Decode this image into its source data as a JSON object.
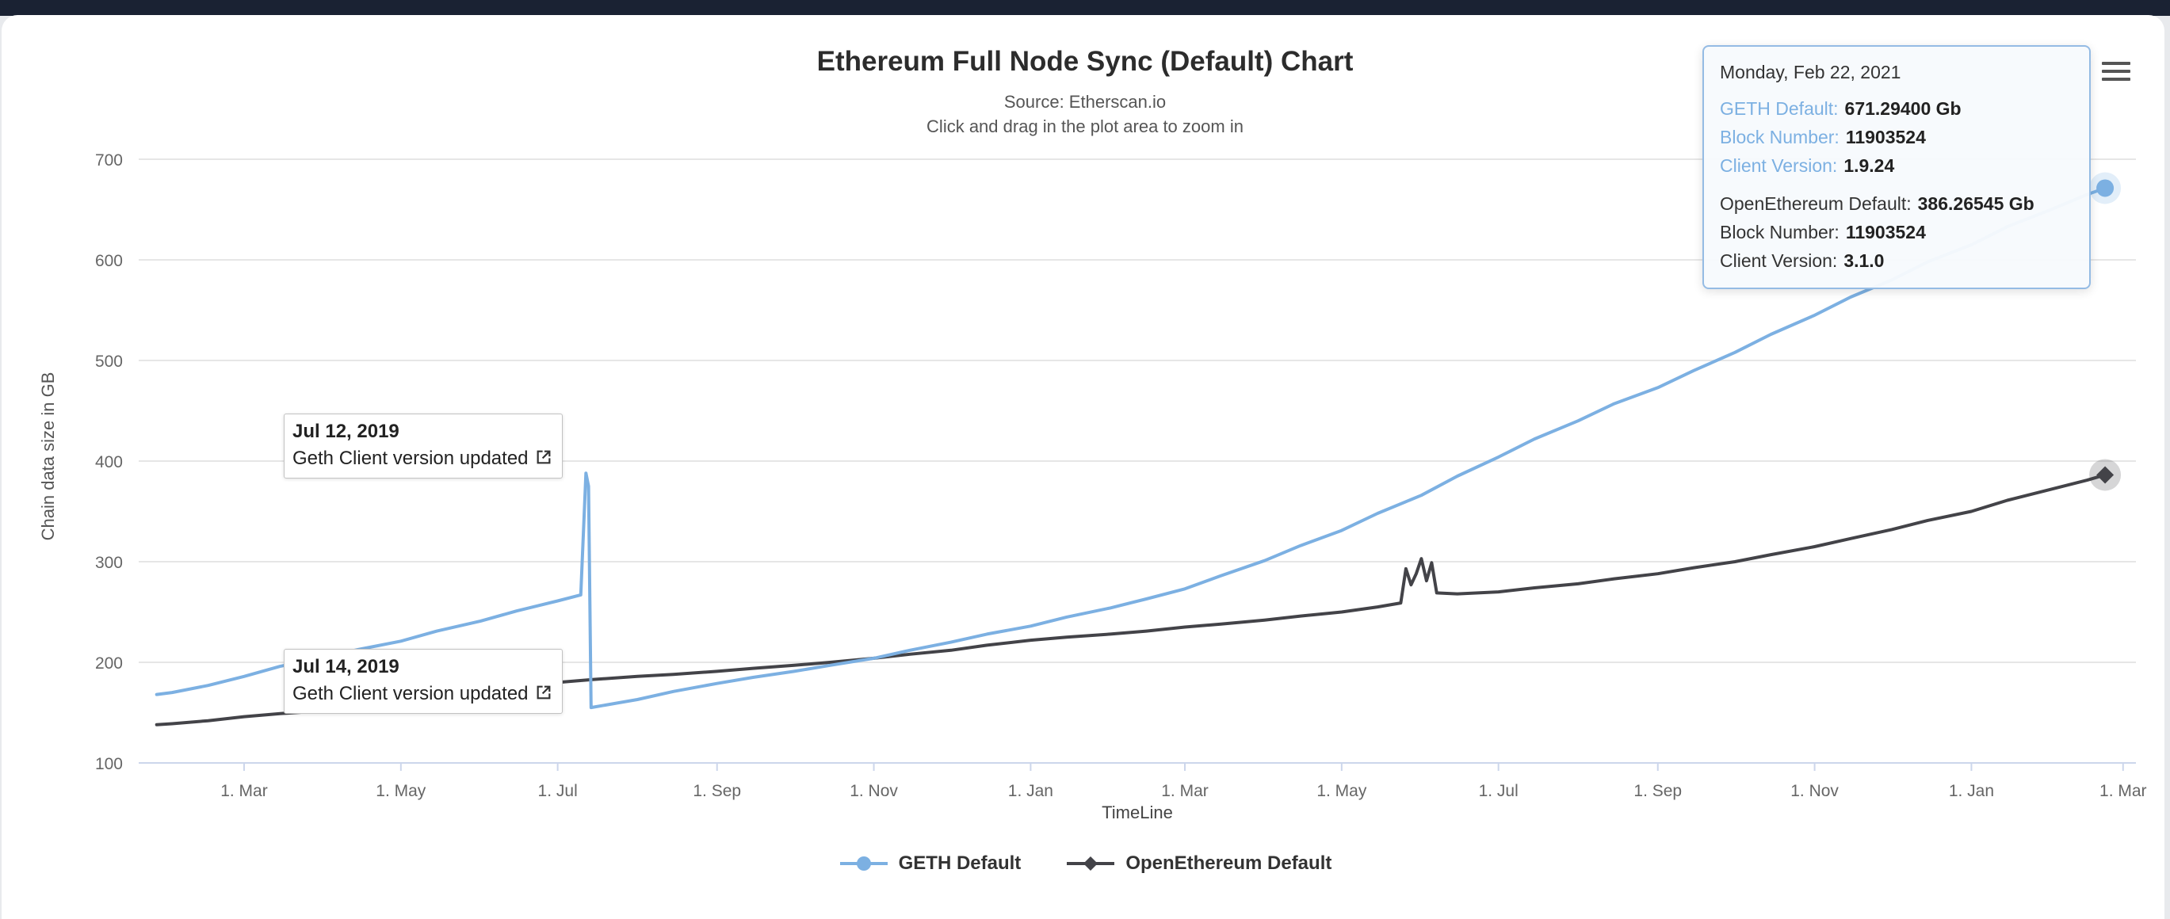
{
  "page": {
    "title": "Ethereum Full Node Sync (Default) Chart",
    "source": "Source: Etherscan.io",
    "hint": "Click and drag in the plot area to zoom in"
  },
  "colors": {
    "geth": "#7cb0e2",
    "openethereum": "#434348",
    "grid": "#e6e6e6",
    "axis": "#ccd6eb",
    "tick_text": "#666666",
    "topbar": "#1a2233",
    "tooltip_border": "#94bbe4",
    "tooltip_bg": "rgba(247,250,253,0.96)"
  },
  "tooltip": {
    "header": "Monday, Feb 22, 2021",
    "groups": [
      {
        "rows": [
          {
            "label": "GETH Default:",
            "value": "671.29400 Gb"
          },
          {
            "label": "Block Number:",
            "value": "11903524"
          },
          {
            "label": "Client Version:",
            "value": "1.9.24"
          }
        ]
      },
      {
        "rows": [
          {
            "label": "OpenEthereum Default:",
            "value": "386.26545 Gb"
          },
          {
            "label": "Block Number:",
            "value": "11903524"
          },
          {
            "label": "Client Version:",
            "value": "3.1.0"
          }
        ]
      }
    ]
  },
  "annotations": [
    {
      "date": "Jul 12, 2019",
      "text": "Geth Client version updated"
    },
    {
      "date": "Jul 14, 2019",
      "text": "Geth Client version updated"
    }
  ],
  "legend": [
    {
      "name": "GETH Default",
      "marker": "circle",
      "color": "#7cb0e2"
    },
    {
      "name": "OpenEthereum Default",
      "marker": "diamond",
      "color": "#434348"
    }
  ],
  "chart_data": {
    "type": "line",
    "title": "Ethereum Full Node Sync (Default) Chart",
    "subtitle": "Source: Etherscan.io",
    "xlabel": "TimeLine",
    "ylabel": "Chain data size in GB",
    "ylim": [
      100,
      700
    ],
    "yticks": [
      100,
      200,
      300,
      400,
      500,
      600,
      700
    ],
    "xlim": [
      "2019-01-19",
      "2021-03-06"
    ],
    "grid": "horizontal",
    "legend_position": "bottom",
    "xticks": [
      {
        "date": "2019-03-01",
        "label": "1. Mar"
      },
      {
        "date": "2019-05-01",
        "label": "1. May"
      },
      {
        "date": "2019-07-01",
        "label": "1. Jul"
      },
      {
        "date": "2019-09-01",
        "label": "1. Sep"
      },
      {
        "date": "2019-11-01",
        "label": "1. Nov"
      },
      {
        "date": "2020-01-01",
        "label": "1. Jan"
      },
      {
        "date": "2020-03-01",
        "label": "1. Mar"
      },
      {
        "date": "2020-05-01",
        "label": "1. May"
      },
      {
        "date": "2020-07-01",
        "label": "1. Jul"
      },
      {
        "date": "2020-09-01",
        "label": "1. Sep"
      },
      {
        "date": "2020-11-01",
        "label": "1. Nov"
      },
      {
        "date": "2021-01-01",
        "label": "1. Jan"
      },
      {
        "date": "2021-03-01",
        "label": "1. Mar"
      }
    ],
    "series": [
      {
        "name": "OpenEthereum Default",
        "color": "#434348",
        "marker": "diamond",
        "points": [
          [
            "2019-01-26",
            138
          ],
          [
            "2019-02-01",
            139
          ],
          [
            "2019-02-15",
            142
          ],
          [
            "2019-03-01",
            146
          ],
          [
            "2019-03-15",
            149
          ],
          [
            "2019-04-01",
            152
          ],
          [
            "2019-04-15",
            155
          ],
          [
            "2019-05-01",
            158
          ],
          [
            "2019-05-15",
            163
          ],
          [
            "2019-06-01",
            168
          ],
          [
            "2019-06-15",
            174
          ],
          [
            "2019-07-01",
            180
          ],
          [
            "2019-07-15",
            183
          ],
          [
            "2019-08-01",
            186
          ],
          [
            "2019-08-15",
            188
          ],
          [
            "2019-09-01",
            191
          ],
          [
            "2019-09-15",
            194
          ],
          [
            "2019-10-01",
            197
          ],
          [
            "2019-10-15",
            200
          ],
          [
            "2019-11-01",
            204
          ],
          [
            "2019-11-15",
            208
          ],
          [
            "2019-12-01",
            212
          ],
          [
            "2019-12-15",
            217
          ],
          [
            "2020-01-01",
            222
          ],
          [
            "2020-01-15",
            225
          ],
          [
            "2020-02-01",
            228
          ],
          [
            "2020-02-15",
            231
          ],
          [
            "2020-03-01",
            235
          ],
          [
            "2020-03-15",
            238
          ],
          [
            "2020-04-01",
            242
          ],
          [
            "2020-04-15",
            246
          ],
          [
            "2020-05-01",
            250
          ],
          [
            "2020-05-15",
            255
          ],
          [
            "2020-05-24",
            259
          ],
          [
            "2020-05-26",
            293
          ],
          [
            "2020-05-28",
            277
          ],
          [
            "2020-05-30",
            288
          ],
          [
            "2020-06-01",
            303
          ],
          [
            "2020-06-03",
            281
          ],
          [
            "2020-06-05",
            299
          ],
          [
            "2020-06-07",
            269
          ],
          [
            "2020-06-15",
            268
          ],
          [
            "2020-07-01",
            270
          ],
          [
            "2020-07-15",
            274
          ],
          [
            "2020-08-01",
            278
          ],
          [
            "2020-08-15",
            283
          ],
          [
            "2020-09-01",
            288
          ],
          [
            "2020-09-15",
            294
          ],
          [
            "2020-10-01",
            300
          ],
          [
            "2020-10-15",
            307
          ],
          [
            "2020-11-01",
            315
          ],
          [
            "2020-11-15",
            323
          ],
          [
            "2020-12-01",
            332
          ],
          [
            "2020-12-15",
            341
          ],
          [
            "2021-01-01",
            350
          ],
          [
            "2021-01-15",
            361
          ],
          [
            "2021-02-01",
            372
          ],
          [
            "2021-02-15",
            381
          ],
          [
            "2021-02-22",
            386.26545
          ]
        ]
      },
      {
        "name": "GETH Default",
        "color": "#7cb0e2",
        "marker": "circle",
        "points": [
          [
            "2019-01-26",
            168
          ],
          [
            "2019-02-01",
            170
          ],
          [
            "2019-02-15",
            177
          ],
          [
            "2019-03-01",
            186
          ],
          [
            "2019-03-15",
            196
          ],
          [
            "2019-04-01",
            205
          ],
          [
            "2019-04-15",
            213
          ],
          [
            "2019-05-01",
            221
          ],
          [
            "2019-05-15",
            231
          ],
          [
            "2019-06-01",
            241
          ],
          [
            "2019-06-15",
            251
          ],
          [
            "2019-07-01",
            261
          ],
          [
            "2019-07-10",
            267
          ],
          [
            "2019-07-12",
            388
          ],
          [
            "2019-07-13",
            375
          ],
          [
            "2019-07-14",
            155
          ],
          [
            "2019-08-01",
            163
          ],
          [
            "2019-08-15",
            171
          ],
          [
            "2019-09-01",
            179
          ],
          [
            "2019-09-15",
            185
          ],
          [
            "2019-10-01",
            191
          ],
          [
            "2019-10-15",
            197
          ],
          [
            "2019-11-01",
            204
          ],
          [
            "2019-11-15",
            212
          ],
          [
            "2019-12-01",
            220
          ],
          [
            "2019-12-15",
            228
          ],
          [
            "2020-01-01",
            236
          ],
          [
            "2020-01-15",
            245
          ],
          [
            "2020-02-01",
            254
          ],
          [
            "2020-02-15",
            263
          ],
          [
            "2020-03-01",
            273
          ],
          [
            "2020-03-15",
            286
          ],
          [
            "2020-04-01",
            301
          ],
          [
            "2020-04-15",
            316
          ],
          [
            "2020-05-01",
            331
          ],
          [
            "2020-05-15",
            348
          ],
          [
            "2020-06-01",
            366
          ],
          [
            "2020-06-15",
            385
          ],
          [
            "2020-07-01",
            404
          ],
          [
            "2020-07-15",
            422
          ],
          [
            "2020-08-01",
            440
          ],
          [
            "2020-08-15",
            457
          ],
          [
            "2020-09-01",
            473
          ],
          [
            "2020-09-15",
            490
          ],
          [
            "2020-10-01",
            508
          ],
          [
            "2020-10-15",
            526
          ],
          [
            "2020-11-01",
            545
          ],
          [
            "2020-11-15",
            563
          ],
          [
            "2020-12-01",
            580
          ],
          [
            "2020-12-15",
            598
          ],
          [
            "2021-01-01",
            615
          ],
          [
            "2021-01-15",
            633
          ],
          [
            "2021-02-01",
            650
          ],
          [
            "2021-02-15",
            665
          ],
          [
            "2021-02-22",
            671.294
          ]
        ]
      }
    ]
  }
}
